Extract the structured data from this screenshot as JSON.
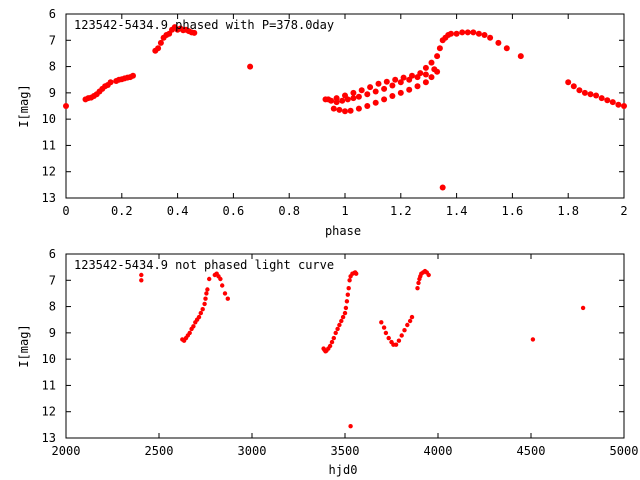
{
  "chart_data": [
    {
      "type": "scatter",
      "title": "123542-5434.9 phased with P=378.0day",
      "xlabel": "phase",
      "ylabel": "I[mag]",
      "xlim": [
        0,
        2
      ],
      "ylim": [
        6,
        13
      ],
      "y_inverted": true,
      "grid": false,
      "x_ticks": [
        "0",
        "0.2",
        "0.4",
        "0.6",
        "0.8",
        "1",
        "1.2",
        "1.4",
        "1.6",
        "1.8",
        "2"
      ],
      "y_ticks": [
        "6",
        "7",
        "8",
        "9",
        "10",
        "11",
        "12",
        "13"
      ],
      "marker_color": "#ff0000",
      "series": [
        {
          "x": [
            0.0,
            0.07,
            0.08,
            0.09,
            0.1,
            0.11,
            0.12,
            0.13,
            0.14,
            0.15,
            0.16,
            0.18,
            0.19,
            0.2,
            0.21,
            0.22,
            0.23,
            0.24,
            0.32,
            0.33,
            0.34,
            0.35,
            0.36,
            0.37,
            0.38,
            0.39,
            0.4,
            0.41,
            0.42,
            0.43,
            0.44,
            0.45,
            0.46,
            0.66,
            0.93,
            0.95,
            0.97,
            0.99,
            1.01,
            1.03,
            1.05,
            1.08,
            1.11,
            1.14,
            1.17,
            1.2,
            1.23,
            1.26,
            1.29,
            1.32,
            0.96,
            0.98,
            1.0,
            1.02,
            1.05,
            1.08,
            1.11,
            1.14,
            1.17,
            1.2,
            1.23,
            1.26,
            1.29,
            1.31,
            1.33,
            0.94,
            0.97,
            1.0,
            1.03,
            1.06,
            1.09,
            1.12,
            1.15,
            1.18,
            1.21,
            1.24,
            1.27,
            1.29,
            1.31,
            1.33,
            1.34,
            1.35,
            1.36,
            1.37,
            1.38,
            1.4,
            1.42,
            1.44,
            1.46,
            1.48,
            1.5,
            1.52,
            1.55,
            1.58,
            1.63,
            1.35,
            1.8,
            1.82,
            1.84,
            1.86,
            1.88,
            1.9,
            1.92,
            1.94,
            1.96,
            1.98,
            2.0
          ],
          "y": [
            9.5,
            9.25,
            9.2,
            9.18,
            9.12,
            9.05,
            8.95,
            8.85,
            8.75,
            8.7,
            8.6,
            8.55,
            8.5,
            8.48,
            8.45,
            8.42,
            8.4,
            8.35,
            7.4,
            7.3,
            7.1,
            6.9,
            6.8,
            6.75,
            6.6,
            6.5,
            6.6,
            6.55,
            6.62,
            6.6,
            6.65,
            6.7,
            6.72,
            8.0,
            9.25,
            9.3,
            9.35,
            9.3,
            9.25,
            9.2,
            9.15,
            9.05,
            8.95,
            8.85,
            8.72,
            8.6,
            8.5,
            8.4,
            8.3,
            8.1,
            9.6,
            9.65,
            9.7,
            9.68,
            9.6,
            9.5,
            9.38,
            9.25,
            9.12,
            9.0,
            8.88,
            8.75,
            8.6,
            8.4,
            8.2,
            9.25,
            9.2,
            9.1,
            9.0,
            8.9,
            8.78,
            8.65,
            8.58,
            8.5,
            8.42,
            8.35,
            8.25,
            8.05,
            7.85,
            7.6,
            7.3,
            7.0,
            6.9,
            6.8,
            6.75,
            6.75,
            6.7,
            6.7,
            6.7,
            6.75,
            6.8,
            6.9,
            7.1,
            7.3,
            7.6,
            12.6,
            8.6,
            8.75,
            8.9,
            9.0,
            9.05,
            9.1,
            9.2,
            9.28,
            9.35,
            9.45,
            9.5
          ]
        }
      ]
    },
    {
      "type": "scatter",
      "title": "123542-5434.9 not phased light curve",
      "xlabel": "hjd0",
      "ylabel": "I[mag]",
      "xlim": [
        2000,
        5000
      ],
      "ylim": [
        6,
        13
      ],
      "y_inverted": true,
      "grid": false,
      "x_ticks": [
        "2000",
        "2500",
        "3000",
        "3500",
        "4000",
        "4500",
        "5000"
      ],
      "y_ticks": [
        "6",
        "7",
        "8",
        "9",
        "10",
        "11",
        "12",
        "13"
      ],
      "marker_color": "#ff0000",
      "series": [
        {
          "x": [
            2405,
            2405,
            2625,
            2635,
            2645,
            2655,
            2665,
            2675,
            2685,
            2695,
            2705,
            2715,
            2725,
            2735,
            2745,
            2750,
            2755,
            2760,
            2770,
            2800,
            2810,
            2820,
            2830,
            2840,
            2855,
            2870,
            3385,
            3390,
            3395,
            3400,
            3410,
            3420,
            3430,
            3440,
            3450,
            3460,
            3470,
            3480,
            3490,
            3500,
            3505,
            3510,
            3515,
            3520,
            3525,
            3530,
            3540,
            3550,
            3555,
            3560,
            3530,
            3695,
            3710,
            3720,
            3735,
            3750,
            3760,
            3775,
            3790,
            3805,
            3820,
            3835,
            3850,
            3860,
            3890,
            3895,
            3900,
            3905,
            3910,
            3920,
            3930,
            3940,
            3950,
            4510,
            4780
          ],
          "y": [
            6.8,
            7.0,
            9.25,
            9.3,
            9.2,
            9.1,
            9.0,
            8.85,
            8.75,
            8.6,
            8.5,
            8.4,
            8.25,
            8.1,
            7.9,
            7.7,
            7.5,
            7.35,
            6.95,
            6.8,
            6.75,
            6.85,
            6.95,
            7.2,
            7.5,
            7.7,
            9.6,
            9.65,
            9.7,
            9.68,
            9.6,
            9.5,
            9.35,
            9.2,
            9.0,
            8.85,
            8.7,
            8.55,
            8.4,
            8.25,
            8.05,
            7.8,
            7.55,
            7.3,
            7.0,
            6.85,
            6.75,
            6.72,
            6.7,
            6.75,
            12.55,
            8.6,
            8.8,
            9.0,
            9.2,
            9.35,
            9.45,
            9.45,
            9.3,
            9.1,
            8.9,
            8.7,
            8.55,
            8.4,
            7.3,
            7.1,
            6.95,
            6.85,
            6.75,
            6.7,
            6.65,
            6.7,
            6.8,
            9.25,
            8.05
          ]
        }
      ]
    }
  ]
}
